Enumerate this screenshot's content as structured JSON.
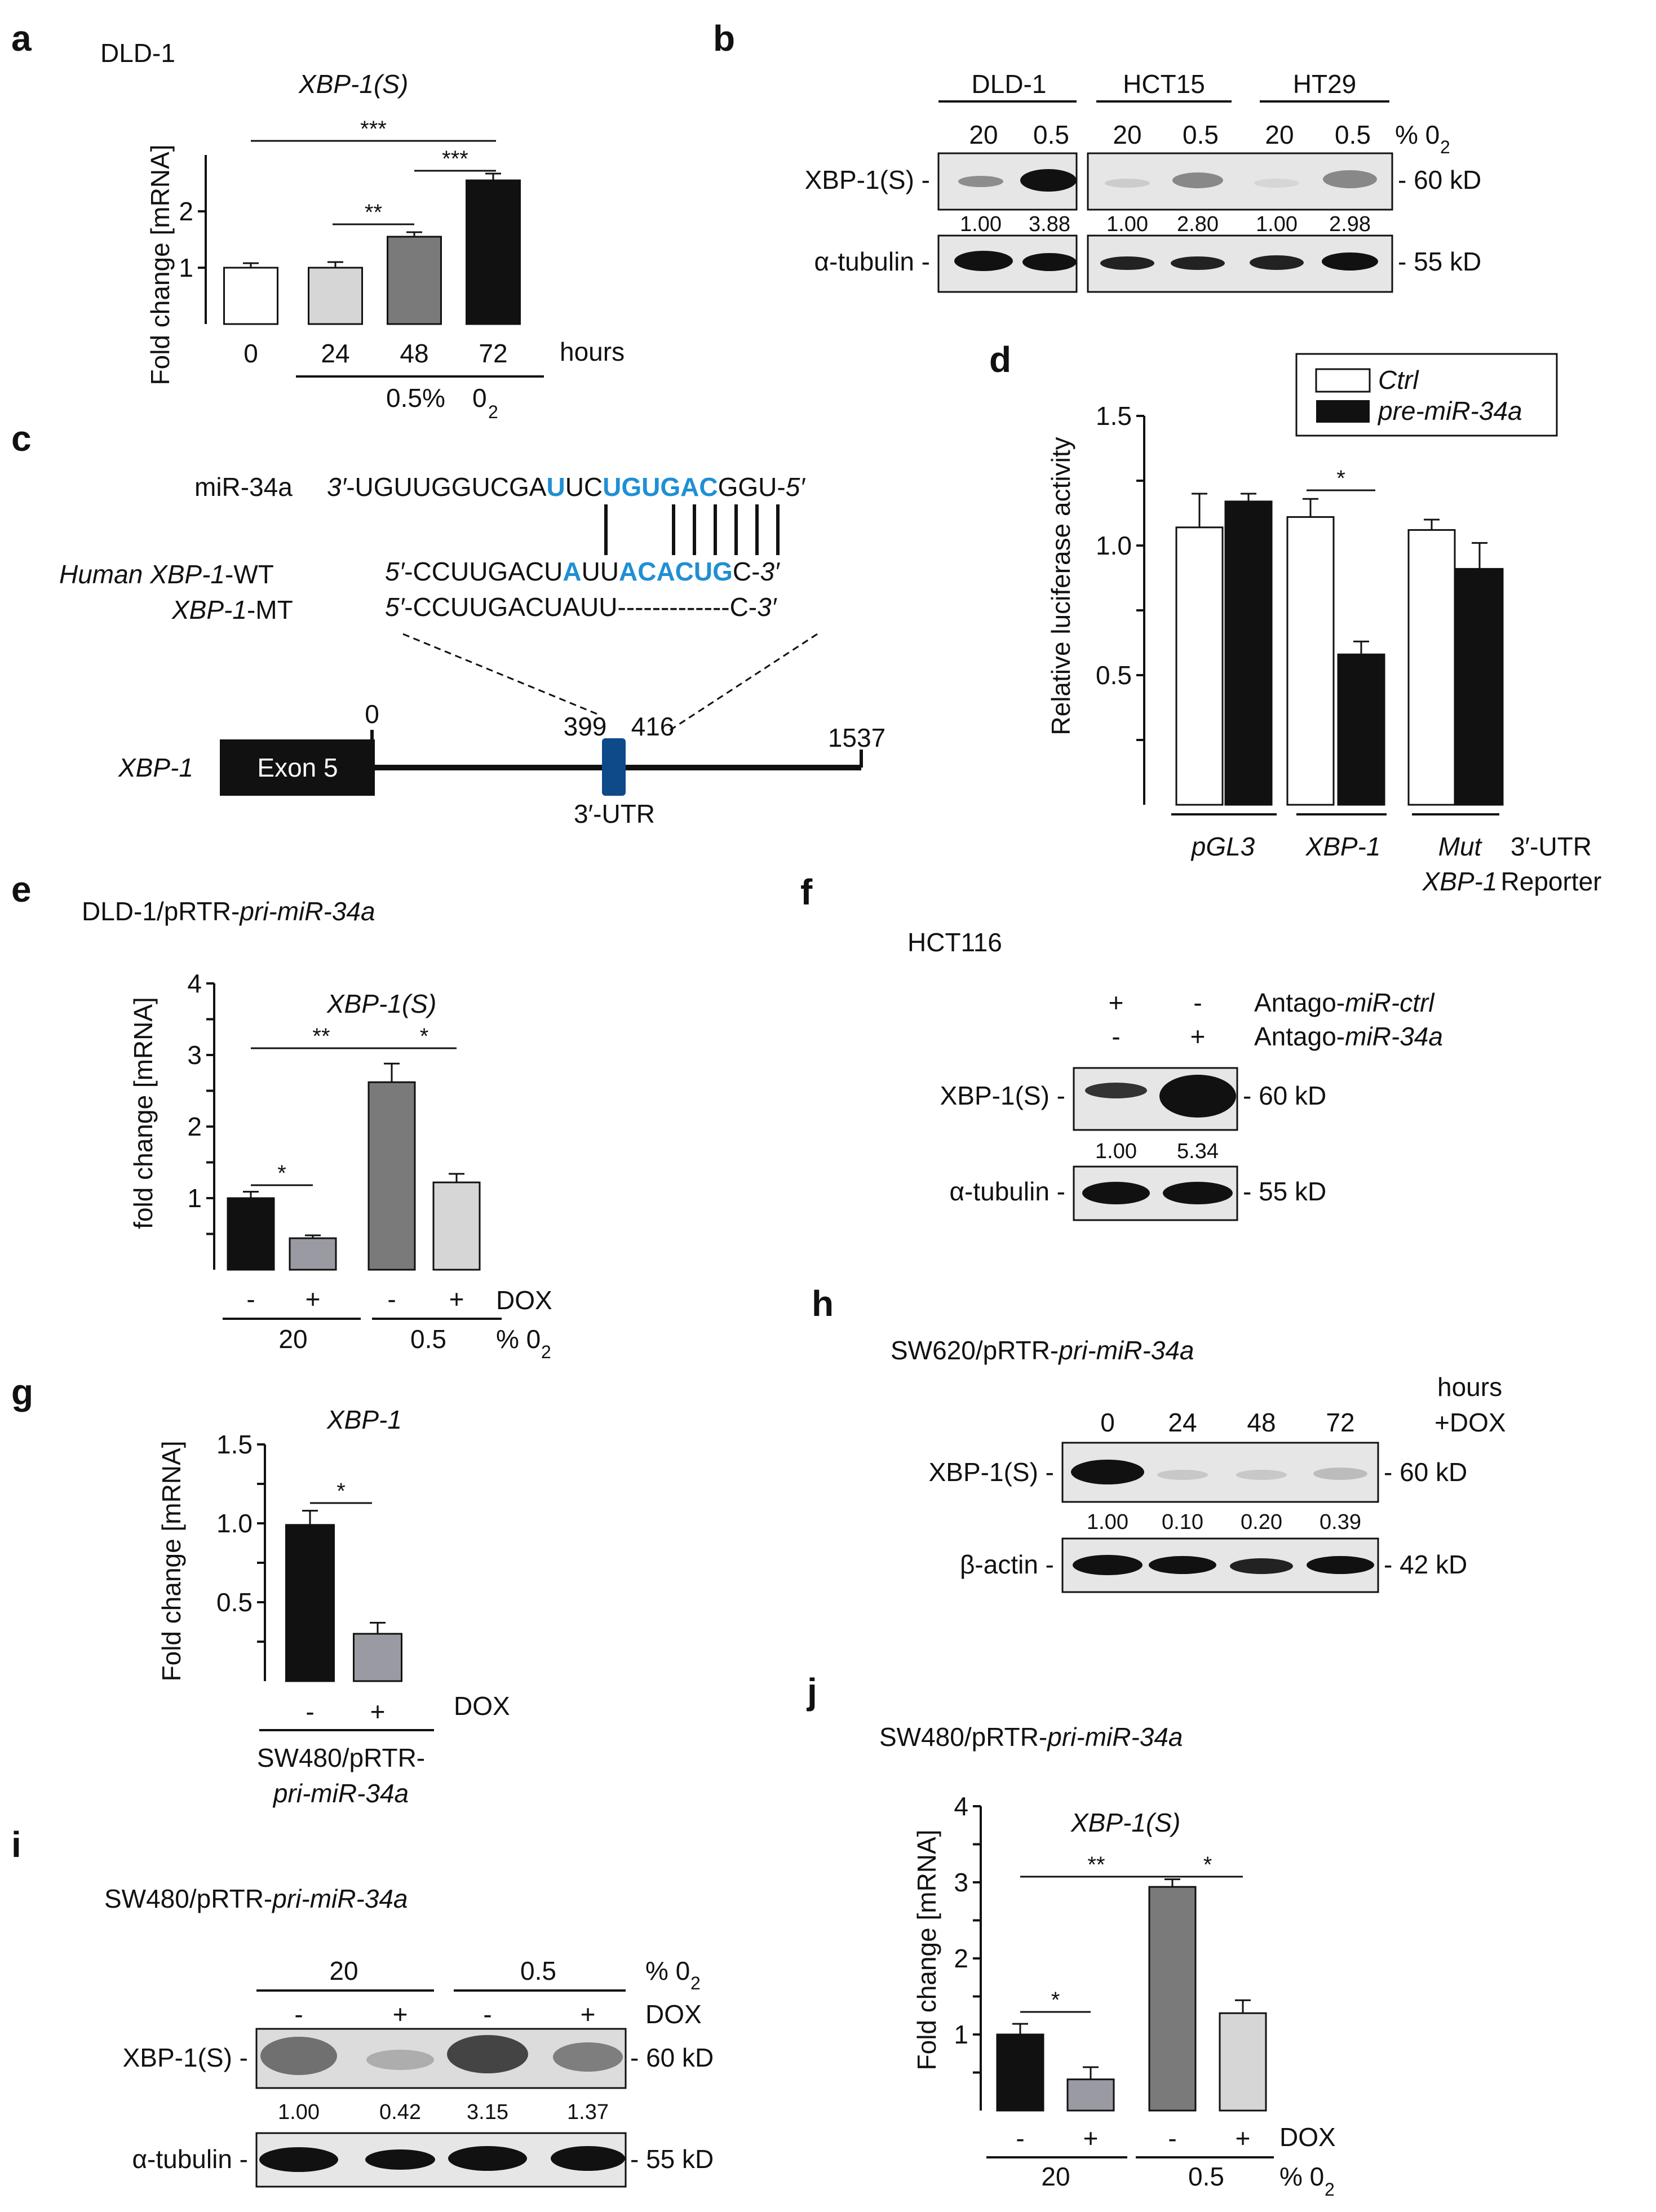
{
  "colors": {
    "black": "#111111",
    "dark_gray": "#7a7a7a",
    "mid_gray": "#9a9aa3",
    "light_gray": "#d6d6d6",
    "white": "#ffffff",
    "mirna_blue": "#1f8fd4",
    "utr_box": "#0e4a8a",
    "blot_bg": "#e6e6e6"
  },
  "panels": {
    "a": {
      "letter": "a",
      "cell_line": "DLD-1",
      "gene": "XBP-1(S)",
      "ylabel": "Fold change [mRNA]",
      "x_unit": "hours",
      "bracket_label": "0.5%",
      "oxygen": "0",
      "oxygen_sub": "2",
      "sig": [
        "***",
        "**",
        "***"
      ]
    },
    "b": {
      "letter": "b",
      "cell_lines": [
        "DLD-1",
        "HCT15",
        "HT29"
      ],
      "o2_levels": [
        "20",
        "0.5",
        "20",
        "0.5",
        "20",
        "0.5"
      ],
      "o2_unit": "% 0",
      "o2_sub": "2",
      "row1_label": "XBP-1(S) -",
      "row1_kd": "- 60 kD",
      "quant": [
        "1.00",
        "3.88",
        "1.00",
        "2.80",
        "1.00",
        "2.98"
      ],
      "row2_label": "α-tubulin -",
      "row2_kd": "- 55 kD"
    },
    "c": {
      "letter": "c",
      "mir_label": "miR-34a",
      "mir_seq": [
        {
          "t": "3′",
          "i": true,
          "b": false
        },
        {
          "t": "-UGUUGGUCGA",
          "i": false,
          "b": false
        },
        {
          "t": "U",
          "i": false,
          "b": true
        },
        {
          "t": "UC",
          "i": false,
          "b": false
        },
        {
          "t": "UGUGAC",
          "i": false,
          "b": true
        },
        {
          "t": "GGU-",
          "i": false,
          "b": false
        },
        {
          "t": "5′",
          "i": true,
          "b": false
        }
      ],
      "wt_label_italic": "Human XBP-1",
      "wt_label_suffix": "-WT",
      "wt_seq": [
        {
          "t": "5′",
          "i": true,
          "b": false
        },
        {
          "t": "-CCUUGACU",
          "i": false,
          "b": false
        },
        {
          "t": "A",
          "i": false,
          "b": true
        },
        {
          "t": "UU",
          "i": false,
          "b": false
        },
        {
          "t": "ACACUG",
          "i": false,
          "b": true
        },
        {
          "t": "C-",
          "i": false,
          "b": false
        },
        {
          "t": "3′",
          "i": true,
          "b": false
        }
      ],
      "mt_label_italic": "XBP-1",
      "mt_label_suffix": "-MT",
      "mt_seq": [
        {
          "t": "5′",
          "i": true,
          "b": false
        },
        {
          "t": "-CCUUGACUAUU-------------C-",
          "i": false,
          "b": false
        },
        {
          "t": "3′",
          "i": true,
          "b": false
        }
      ],
      "gene_label": "XBP-1",
      "exon": "Exon 5",
      "pos_start": "0",
      "pos_site_a": "399",
      "pos_site_b": "416",
      "pos_end": "1537",
      "utr": "3′-UTR"
    },
    "d": {
      "letter": "d",
      "ylabel": "Relative luciferase activity",
      "legend": [
        "Ctrl",
        "pre-miR-34a"
      ],
      "groups": [
        "pGL3",
        "XBP-1",
        "Mut",
        "XBP-1"
      ],
      "reporter_1": "3′-UTR",
      "reporter_2": "Reporter",
      "sig": [
        "*"
      ]
    },
    "e": {
      "letter": "e",
      "title_plain": "DLD-1/pRTR-",
      "title_italic": "pri-miR-34a",
      "gene": "XBP-1(S)",
      "ylabel": "fold change [mRNA]",
      "dox_signs": [
        "-",
        "+",
        "-",
        "+"
      ],
      "dox": "DOX",
      "o2_levels": [
        "20",
        "0.5"
      ],
      "o2_unit": "% 0",
      "o2_sub": "2",
      "sig": [
        "**",
        "*",
        "*"
      ]
    },
    "f": {
      "letter": "f",
      "cell_line": "HCT116",
      "row_a_signs": [
        "+",
        "-"
      ],
      "row_b_signs": [
        "-",
        "+"
      ],
      "row_a_label": "Antago-",
      "row_a_italic": "miR-ctrl",
      "row_b_label": "Antago-",
      "row_b_italic": "miR-34a",
      "row1_label": "XBP-1(S) -",
      "row1_kd": "- 60 kD",
      "quant": [
        "1.00",
        "5.34"
      ],
      "row2_label": "α-tubulin -",
      "row2_kd": "- 55 kD"
    },
    "g": {
      "letter": "g",
      "gene": "XBP-1",
      "ylabel": "Fold change [mRNA]",
      "dox_signs": [
        "-",
        "+"
      ],
      "dox": "DOX",
      "line_1": "SW480/pRTR-",
      "line_2": "pri-miR-34a",
      "sig": [
        "*"
      ]
    },
    "h": {
      "letter": "h",
      "title_plain": "SW620/pRTR-",
      "title_italic": "pri-miR-34a",
      "hours": "hours",
      "dox": "+DOX",
      "timepoints": [
        "0",
        "24",
        "48",
        "72"
      ],
      "row1_label": "XBP-1(S) -",
      "row1_kd": "- 60 kD",
      "quant": [
        "1.00",
        "0.10",
        "0.20",
        "0.39"
      ],
      "row2_label": "β-actin -",
      "row2_kd": "- 42 kD"
    },
    "i": {
      "letter": "i",
      "title_plain": "SW480/pRTR-",
      "title_italic": "pri-miR-34a",
      "o2_levels": [
        "20",
        "0.5"
      ],
      "o2_unit": "% 0",
      "o2_sub": "2",
      "dox_signs": [
        "-",
        "+",
        "-",
        "+"
      ],
      "dox": "DOX",
      "row1_label": "XBP-1(S) -",
      "row1_kd": "- 60 kD",
      "quant": [
        "1.00",
        "0.42",
        "3.15",
        "1.37"
      ],
      "row2_label": "α-tubulin -",
      "row2_kd": "- 55 kD"
    },
    "j": {
      "letter": "j",
      "title_plain": "SW480/pRTR-",
      "title_italic": "pri-miR-34a",
      "gene": "XBP-1(S)",
      "ylabel": "Fold change [mRNA]",
      "dox_signs": [
        "-",
        "+",
        "-",
        "+"
      ],
      "dox": "DOX",
      "o2_levels": [
        "20",
        "0.5"
      ],
      "o2_unit": "% 0",
      "o2_sub": "2",
      "sig": [
        "**",
        "*",
        "*"
      ]
    }
  },
  "chart_data": [
    {
      "panel": "a",
      "type": "bar",
      "categories": [
        "0",
        "24",
        "48",
        "72"
      ],
      "values": [
        1.0,
        1.0,
        1.55,
        2.55
      ],
      "errors": [
        0.08,
        0.1,
        0.08,
        0.12
      ],
      "bar_colors": [
        "white",
        "light_gray",
        "dark_gray",
        "black"
      ],
      "ylim": [
        0,
        3
      ],
      "yticks": [
        "1",
        "2"
      ],
      "ylabel": "Fold change [mRNA]",
      "xlabel": "hours"
    },
    {
      "panel": "d",
      "type": "bar",
      "categories": [
        "pGL3",
        "XBP-1",
        "Mut XBP-1"
      ],
      "series": [
        {
          "name": "Ctrl",
          "values": [
            1.07,
            1.11,
            1.06
          ],
          "errors": [
            0.13,
            0.07,
            0.04
          ]
        },
        {
          "name": "pre-miR-34a",
          "values": [
            1.17,
            0.58,
            0.91
          ],
          "errors": [
            0.03,
            0.05,
            0.1
          ]
        }
      ],
      "ylim": [
        0,
        1.5
      ],
      "yticks": [
        "0.5",
        "1.0",
        "1.5"
      ],
      "ylabel": "Relative luciferase activity"
    },
    {
      "panel": "e",
      "type": "bar",
      "categories": [
        "20 -",
        "20 +",
        "0.5 -",
        "0.5 +"
      ],
      "values": [
        1.0,
        0.44,
        2.62,
        1.22
      ],
      "errors": [
        0.09,
        0.04,
        0.26,
        0.12
      ],
      "bar_colors": [
        "black",
        "mid_gray",
        "dark_gray",
        "light_gray"
      ],
      "ylim": [
        0,
        4
      ],
      "yticks": [
        "1",
        "2",
        "3",
        "4"
      ],
      "ylabel": "fold change [mRNA]"
    },
    {
      "panel": "g",
      "type": "bar",
      "categories": [
        "-",
        "+"
      ],
      "values": [
        0.99,
        0.3
      ],
      "errors": [
        0.09,
        0.07
      ],
      "bar_colors": [
        "black",
        "mid_gray"
      ],
      "ylim": [
        0,
        1.5
      ],
      "yticks": [
        "0.5",
        "1.0",
        "1.5"
      ],
      "ylabel": "Fold change [mRNA]"
    },
    {
      "panel": "j",
      "type": "bar",
      "categories": [
        "20 -",
        "20 +",
        "0.5 -",
        "0.5 +"
      ],
      "values": [
        1.0,
        0.41,
        2.94,
        1.28
      ],
      "errors": [
        0.14,
        0.16,
        0.1,
        0.17
      ],
      "bar_colors": [
        "black",
        "mid_gray",
        "dark_gray",
        "light_gray"
      ],
      "ylim": [
        0,
        4
      ],
      "yticks": [
        "1",
        "2",
        "3",
        "4"
      ],
      "ylabel": "Fold change [mRNA]"
    }
  ]
}
